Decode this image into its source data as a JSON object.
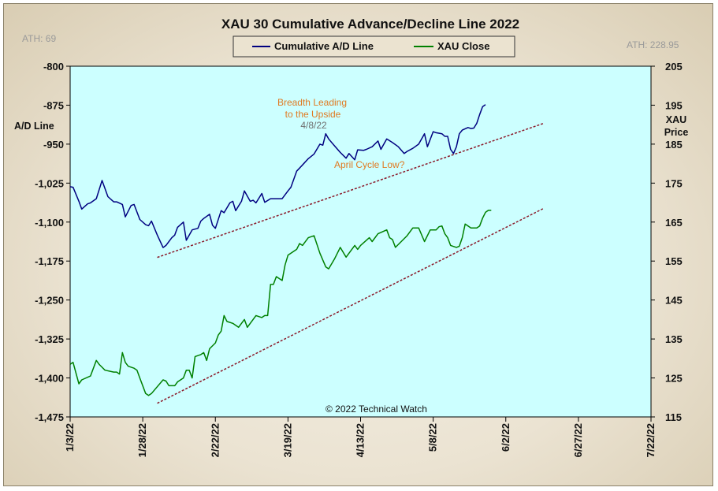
{
  "chart_data": {
    "type": "line",
    "title": "XAU 30 Cumulative Advance/Decline Line 2022",
    "ylabel_left": "A/D Line",
    "ylabel_right": [
      "XAU",
      "Price"
    ],
    "ath_left": "ATH: 69",
    "ath_right": "ATH: 228.95",
    "ylim_left": [
      -1475,
      -800
    ],
    "yticks_left": [
      "-800",
      "-875",
      "-950",
      "-1,025",
      "-1,100",
      "-1,175",
      "-1,250",
      "-1,325",
      "-1,400",
      "-1,475"
    ],
    "ylim_right": [
      115,
      205
    ],
    "yticks_right": [
      "205",
      "195",
      "185",
      "175",
      "165",
      "155",
      "145",
      "135",
      "125",
      "115"
    ],
    "xlim_days": [
      0,
      200
    ],
    "xticks": [
      "1/3/22",
      "1/28/22",
      "2/22/22",
      "3/19/22",
      "4/13/22",
      "5/8/22",
      "6/2/22",
      "6/27/22",
      "7/22/22"
    ],
    "grid": false,
    "legend_position": "top-center",
    "series": [
      {
        "name": "Cumulative A/D Line",
        "axis": "left",
        "color": "#000080",
        "points": [
          [
            0,
            -1032
          ],
          [
            1,
            -1033
          ],
          [
            3,
            -1060
          ],
          [
            4,
            -1075
          ],
          [
            6,
            -1065
          ],
          [
            7,
            -1063
          ],
          [
            9,
            -1055
          ],
          [
            11,
            -1020
          ],
          [
            13,
            -1051
          ],
          [
            15,
            -1061
          ],
          [
            16,
            -1061
          ],
          [
            18,
            -1066
          ],
          [
            19,
            -1090
          ],
          [
            21,
            -1068
          ],
          [
            22,
            -1066
          ],
          [
            24,
            -1095
          ],
          [
            26,
            -1105
          ],
          [
            27,
            -1107
          ],
          [
            28,
            -1098
          ],
          [
            30,
            -1125
          ],
          [
            32,
            -1149
          ],
          [
            33,
            -1145
          ],
          [
            35,
            -1130
          ],
          [
            36,
            -1125
          ],
          [
            37,
            -1110
          ],
          [
            39,
            -1100
          ],
          [
            40,
            -1135
          ],
          [
            42,
            -1115
          ],
          [
            44,
            -1112
          ],
          [
            45,
            -1098
          ],
          [
            46,
            -1093
          ],
          [
            48,
            -1085
          ],
          [
            49,
            -1106
          ],
          [
            50,
            -1112
          ],
          [
            52,
            -1078
          ],
          [
            53,
            -1082
          ],
          [
            55,
            -1063
          ],
          [
            56,
            -1060
          ],
          [
            57,
            -1078
          ],
          [
            59,
            -1060
          ],
          [
            60,
            -1040
          ],
          [
            62,
            -1060
          ],
          [
            63,
            -1058
          ],
          [
            64,
            -1063
          ],
          [
            66,
            -1045
          ],
          [
            67,
            -1062
          ],
          [
            69,
            -1055
          ],
          [
            70,
            -1055
          ],
          [
            72,
            -1055
          ],
          [
            73,
            -1055
          ],
          [
            75,
            -1040
          ],
          [
            76,
            -1033
          ],
          [
            78,
            -1002
          ],
          [
            80,
            -990
          ],
          [
            82,
            -978
          ],
          [
            84,
            -969
          ],
          [
            86,
            -950
          ],
          [
            87,
            -952
          ],
          [
            88,
            -930
          ],
          [
            89,
            -940
          ],
          [
            91,
            -953
          ],
          [
            93,
            -966
          ],
          [
            95,
            -977
          ],
          [
            96,
            -968
          ],
          [
            98,
            -980
          ],
          [
            99,
            -961
          ],
          [
            101,
            -962
          ],
          [
            102,
            -960
          ],
          [
            104,
            -955
          ],
          [
            106,
            -944
          ],
          [
            107,
            -960
          ],
          [
            109,
            -940
          ],
          [
            111,
            -947
          ],
          [
            113,
            -955
          ],
          [
            115,
            -968
          ],
          [
            116,
            -964
          ],
          [
            118,
            -958
          ],
          [
            120,
            -950
          ],
          [
            122,
            -930
          ],
          [
            123,
            -955
          ],
          [
            125,
            -926
          ],
          [
            126,
            -928
          ],
          [
            128,
            -930
          ],
          [
            129,
            -935
          ],
          [
            130,
            -935
          ],
          [
            131,
            -960
          ],
          [
            132,
            -968
          ],
          [
            133,
            -955
          ],
          [
            134,
            -930
          ],
          [
            135,
            -923
          ],
          [
            137,
            -918
          ],
          [
            138,
            -920
          ],
          [
            139,
            -919
          ],
          [
            140,
            -910
          ],
          [
            141,
            -893
          ],
          [
            142,
            -878
          ],
          [
            143,
            -874
          ]
        ]
      },
      {
        "name": "XAU Close",
        "axis": "right",
        "color": "#008000",
        "points": [
          [
            0,
            128.5
          ],
          [
            1,
            129
          ],
          [
            3,
            123.5
          ],
          [
            4,
            124.5
          ],
          [
            7,
            125.5
          ],
          [
            9,
            129.5
          ],
          [
            10,
            128.5
          ],
          [
            12,
            127
          ],
          [
            15,
            126.5
          ],
          [
            16,
            126.5
          ],
          [
            17,
            126
          ],
          [
            18,
            131.5
          ],
          [
            19,
            129
          ],
          [
            20,
            128
          ],
          [
            22,
            127.5
          ],
          [
            23,
            127
          ],
          [
            24,
            125
          ],
          [
            26,
            121
          ],
          [
            27,
            120.5
          ],
          [
            28,
            121
          ],
          [
            32,
            124.5
          ],
          [
            33,
            124.2
          ],
          [
            34,
            123
          ],
          [
            36,
            123
          ],
          [
            37,
            124
          ],
          [
            39,
            125
          ],
          [
            40,
            127
          ],
          [
            41,
            127
          ],
          [
            42,
            125
          ],
          [
            43,
            130.5
          ],
          [
            45,
            131
          ],
          [
            46,
            131.5
          ],
          [
            47,
            129.5
          ],
          [
            48,
            132.5
          ],
          [
            50,
            134
          ],
          [
            51,
            136
          ],
          [
            52,
            137
          ],
          [
            53,
            141
          ],
          [
            54,
            139.5
          ],
          [
            56,
            139
          ],
          [
            58,
            138
          ],
          [
            59,
            139
          ],
          [
            60,
            140
          ],
          [
            61,
            138
          ],
          [
            62,
            139
          ],
          [
            64,
            141
          ],
          [
            66,
            140.5
          ],
          [
            67,
            141
          ],
          [
            68,
            141
          ],
          [
            69,
            149
          ],
          [
            70,
            149
          ],
          [
            71,
            151
          ],
          [
            73,
            150
          ],
          [
            74,
            154
          ],
          [
            75,
            156.5
          ],
          [
            78,
            158
          ],
          [
            79,
            159.5
          ],
          [
            80,
            159
          ],
          [
            82,
            161
          ],
          [
            84,
            161.5
          ],
          [
            86,
            157
          ],
          [
            88,
            153.5
          ],
          [
            89,
            153
          ],
          [
            91,
            155.5
          ],
          [
            93,
            158.5
          ],
          [
            95,
            156
          ],
          [
            98,
            159
          ],
          [
            99,
            158
          ],
          [
            100,
            159
          ],
          [
            103,
            161
          ],
          [
            104,
            160
          ],
          [
            106,
            162
          ],
          [
            109,
            163
          ],
          [
            110,
            161
          ],
          [
            111,
            160.5
          ],
          [
            112,
            158.5
          ],
          [
            114,
            160
          ],
          [
            116,
            161.5
          ],
          [
            118,
            163.5
          ],
          [
            120,
            163.5
          ],
          [
            122,
            160
          ],
          [
            124,
            163
          ],
          [
            126,
            163
          ],
          [
            127,
            163.8
          ],
          [
            128,
            164
          ],
          [
            129,
            162
          ],
          [
            130,
            161
          ],
          [
            131,
            159
          ],
          [
            133,
            158.5
          ],
          [
            134,
            158.8
          ],
          [
            135,
            161
          ],
          [
            136,
            164.5
          ],
          [
            138,
            163.5
          ],
          [
            139,
            163.5
          ],
          [
            140,
            163.5
          ],
          [
            141,
            164
          ],
          [
            142,
            166
          ],
          [
            143,
            167.5
          ],
          [
            144,
            168
          ],
          [
            145,
            168
          ]
        ]
      }
    ],
    "trendlines": [
      {
        "axis": "left",
        "from": [
          30,
          -1168
        ],
        "to": [
          163,
          -910
        ],
        "color": "#8b1a2a",
        "style": "dashed"
      },
      {
        "axis": "right",
        "from": [
          30,
          118.5
        ],
        "to": [
          163,
          168.5
        ],
        "color": "#8b1a2a",
        "style": "dashed"
      }
    ],
    "annotations": [
      {
        "text": "Breadth Leading",
        "color": "#e07a22"
      },
      {
        "text": "to the Upside",
        "color": "#e07a22"
      },
      {
        "text": "4/8/22",
        "color": "#707070"
      },
      {
        "text": "April Cycle Low?",
        "color": "#e07a22"
      }
    ],
    "copyright": "© 2022 Technical Watch"
  },
  "colors": {
    "plot_background": "#ccffff",
    "ad_line": "#000080",
    "xau_close": "#008000",
    "trendline": "#8b1a2a",
    "annotation_orange": "#e07a22"
  }
}
